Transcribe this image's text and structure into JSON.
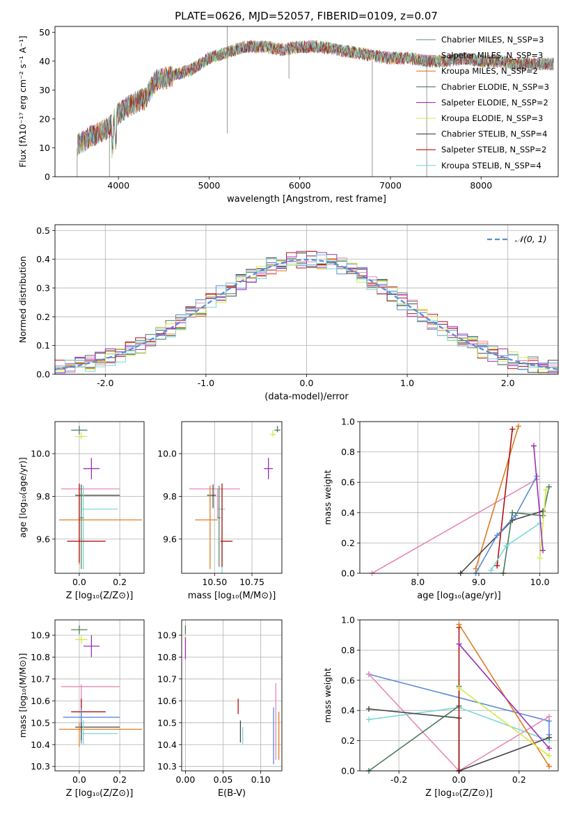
{
  "figure": {
    "title": "PLATE=0626, MJD=52057, FIBERID=0109, z=0.07"
  },
  "chart_data": [
    {
      "id": "spectrum",
      "type": "line",
      "xlabel": "wavelength [Angstrom, rest frame]",
      "ylabel": "Flux [fλ10⁻¹⁷ erg cm⁻² s⁻¹ A⁻¹]",
      "xlim": [
        3300,
        8850
      ],
      "ylim": [
        0,
        52
      ],
      "xticks": [
        4000,
        5000,
        6000,
        7000,
        8000
      ],
      "yticks": [
        0,
        10,
        20,
        30,
        40,
        50
      ],
      "grid": false,
      "legend_position": "top-right",
      "continuum_trend": {
        "x": [
          3550,
          3700,
          3900,
          4000,
          4200,
          4300,
          4400,
          4600,
          4800,
          5000,
          5200,
          5400,
          5600,
          5800,
          6000,
          6200,
          6400,
          6600,
          6800,
          7000,
          7200,
          7400,
          7600,
          7800,
          8000,
          8200,
          8400,
          8800
        ],
        "y": [
          11,
          14,
          17,
          22,
          26,
          27,
          33,
          35,
          37,
          41,
          43,
          45,
          45,
          44,
          45,
          45,
          44,
          43,
          42,
          41,
          41,
          40,
          40,
          41,
          40,
          40,
          39,
          39
        ]
      },
      "series": [
        {
          "name": "Chabrier MILES, N_SSP=3",
          "color": "#5b8c6e"
        },
        {
          "name": "Salpeter MILES, N_SSP=3",
          "color": "#e68ab8"
        },
        {
          "name": "Kroupa MILES, N_SSP=2",
          "color": "#e07b20"
        },
        {
          "name": "Chabrier ELODIE, N_SSP=3",
          "color": "#4c7a5c"
        },
        {
          "name": "Salpeter ELODIE, N_SSP=2",
          "color": "#9b30b5"
        },
        {
          "name": "Kroupa ELODIE, N_SSP=3",
          "color": "#d4e84a"
        },
        {
          "name": "Chabrier STELIB, N_SSP=4",
          "color": "#444444"
        },
        {
          "name": "Salpeter STELIB, N_SSP=2",
          "color": "#b01010"
        },
        {
          "name": "Kroupa STELIB, N_SSP=4",
          "color": "#7ad8d8"
        }
      ]
    },
    {
      "id": "residual_hist",
      "type": "line",
      "xlabel": "(data-model)/error",
      "ylabel": "Normed distribution",
      "xlim": [
        -2.5,
        2.5
      ],
      "ylim": [
        0,
        0.52
      ],
      "xticks": [
        -2,
        -1,
        0,
        1,
        2
      ],
      "yticks": [
        0.0,
        0.1,
        0.2,
        0.3,
        0.4,
        0.5
      ],
      "grid": true,
      "legend_position": "top-right",
      "reference": {
        "name": "𝒩(0, 1)",
        "color": "#5b8bd8",
        "style": "dashed",
        "mean": 0,
        "sigma": 1
      },
      "hist_colors": [
        "#5b8bd8",
        "#e07b20",
        "#4c7a5c",
        "#b01010",
        "#444444",
        "#e68ab8",
        "#d4e84a",
        "#9b30b5",
        "#7ad8d8"
      ]
    },
    {
      "id": "age_vs_Z",
      "type": "scatter",
      "xlabel": "Z [log₁₀(Z/Z⊙)]",
      "ylabel": "age  [log₁₀(age/yr)]",
      "xlim": [
        -0.12,
        0.32
      ],
      "ylim": [
        9.44,
        10.15
      ],
      "xticks": [
        0.0,
        0.2
      ],
      "yticks": [
        9.6,
        9.8,
        10.0
      ],
      "grid": true,
      "points": [
        {
          "x": 0.0,
          "y": 10.11,
          "xerr": [
            0.04,
            0.04
          ],
          "yerr": [
            0.02,
            0.02
          ],
          "color": "#4c7a5c"
        },
        {
          "x": 0.01,
          "y": 10.08,
          "xerr": [
            0.03,
            0.03
          ],
          "yerr": [
            0.01,
            0.02
          ],
          "color": "#d4e84a"
        },
        {
          "x": 0.06,
          "y": 9.93,
          "xerr": [
            0.04,
            0.04
          ],
          "yerr": [
            0.05,
            0.05
          ],
          "color": "#9b30b5"
        },
        {
          "x": 0.01,
          "y": 9.835,
          "xerr": [
            0.1,
            0.19
          ],
          "yerr": [
            0.12,
            0.0
          ],
          "color": "#e68ab8"
        },
        {
          "x": 0.01,
          "y": 9.805,
          "xerr": [
            0.03,
            0.19
          ],
          "yerr": [
            0.06,
            0.05
          ],
          "color": "#444444"
        },
        {
          "x": 0.02,
          "y": 9.74,
          "xerr": [
            0.01,
            0.17
          ],
          "yerr": [
            0.28,
            0.11
          ],
          "color": "#7ad8d8"
        },
        {
          "x": 0.0,
          "y": 9.69,
          "xerr": [
            0.1,
            0.31
          ],
          "yerr": [
            0.21,
            0.16
          ],
          "color": "#e07b20"
        },
        {
          "x": 0.0,
          "y": 9.59,
          "xerr": [
            0.06,
            0.13
          ],
          "yerr": [
            0.1,
            0.27
          ],
          "color": "#b01010"
        },
        {
          "x": 0.01,
          "y": 9.7,
          "xerr": [
            0.01,
            0.01
          ],
          "yerr": [
            0.24,
            0.15
          ],
          "color": "#5b8c6e"
        }
      ]
    },
    {
      "id": "age_vs_mass",
      "type": "scatter",
      "xlabel": "mass [log₁₀(M/M⊙)]",
      "ylabel": "",
      "xlim": [
        10.28,
        10.95
      ],
      "ylim": [
        9.44,
        10.15
      ],
      "xticks": [
        10.5,
        10.75
      ],
      "yticks": [
        9.6,
        9.8,
        10.0
      ],
      "grid": true,
      "points": [
        {
          "x": 10.92,
          "y": 10.11,
          "xerr": [
            0.02,
            0.02
          ],
          "yerr": [
            0.01,
            0.02
          ],
          "color": "#4c7a5c"
        },
        {
          "x": 10.89,
          "y": 10.09,
          "xerr": [
            0.02,
            0.02
          ],
          "yerr": [
            0.01,
            0.02
          ],
          "color": "#d4e84a"
        },
        {
          "x": 10.86,
          "y": 9.93,
          "xerr": [
            0.03,
            0.03
          ],
          "yerr": [
            0.05,
            0.05
          ],
          "color": "#9b30b5"
        },
        {
          "x": 10.52,
          "y": 9.835,
          "xerr": [
            0.19,
            0.15
          ],
          "yerr": [
            0.14,
            0.0
          ],
          "color": "#e68ab8"
        },
        {
          "x": 10.49,
          "y": 9.805,
          "xerr": [
            0.04,
            0.02
          ],
          "yerr": [
            0.06,
            0.05
          ],
          "color": "#444444"
        },
        {
          "x": 10.55,
          "y": 9.74,
          "xerr": [
            0.03,
            0.02
          ],
          "yerr": [
            0.3,
            0.1
          ],
          "color": "#7ad8d8"
        },
        {
          "x": 10.47,
          "y": 9.69,
          "xerr": [
            0.1,
            0.05
          ],
          "yerr": [
            0.23,
            0.16
          ],
          "color": "#e07b20"
        },
        {
          "x": 10.55,
          "y": 9.59,
          "xerr": [
            0.01,
            0.07
          ],
          "yerr": [
            0.12,
            0.27
          ],
          "color": "#b01010"
        },
        {
          "x": 10.53,
          "y": 9.7,
          "xerr": [
            0.01,
            0.01
          ],
          "yerr": [
            0.23,
            0.15
          ],
          "color": "#5b8c6e"
        }
      ]
    },
    {
      "id": "weight_vs_age",
      "type": "line",
      "xlabel": "age  [log₁₀(age/yr)]",
      "ylabel": "mass weight",
      "xlim": [
        7.05,
        10.3
      ],
      "ylim": [
        0.0,
        1.0
      ],
      "xticks": [
        8,
        9,
        10
      ],
      "yticks": [
        0.0,
        0.2,
        0.4,
        0.6,
        0.8,
        1.0
      ],
      "grid": true,
      "series": [
        {
          "color": "#e68ab8",
          "x": [
            7.25,
            9.95
          ],
          "y": [
            0.0,
            0.62
          ]
        },
        {
          "color": "#e07b20",
          "x": [
            8.95,
            9.65
          ],
          "y": [
            0.03,
            0.97
          ]
        },
        {
          "color": "#b01010",
          "x": [
            9.3,
            9.55
          ],
          "y": [
            0.05,
            0.95
          ]
        },
        {
          "color": "#444444",
          "x": [
            8.7,
            9.55,
            10.05
          ],
          "y": [
            0.0,
            0.35,
            0.41
          ]
        },
        {
          "color": "#5b8bd8",
          "x": [
            8.95,
            9.3,
            9.6,
            9.95
          ],
          "y": [
            0.0,
            0.25,
            0.38,
            0.64
          ]
        },
        {
          "color": "#4c7a5c",
          "x": [
            9.4,
            9.55,
            10.05,
            10.15
          ],
          "y": [
            0.0,
            0.4,
            0.38,
            0.57
          ]
        },
        {
          "color": "#7ad8d8",
          "x": [
            9.2,
            9.45,
            10.0
          ],
          "y": [
            0.02,
            0.18,
            0.33
          ]
        },
        {
          "color": "#d4e84a",
          "x": [
            10.0,
            10.1
          ],
          "y": [
            0.1,
            0.55
          ]
        },
        {
          "color": "#9b30b5",
          "x": [
            9.9,
            10.05
          ],
          "y": [
            0.84,
            0.15
          ]
        }
      ]
    },
    {
      "id": "mass_vs_Z",
      "type": "scatter",
      "xlabel": "Z [log₁₀(Z/Z⊙)]",
      "ylabel": "mass [log₁₀(M/M⊙)]",
      "xlim": [
        -0.12,
        0.32
      ],
      "ylim": [
        10.28,
        10.97
      ],
      "xticks": [
        0.0,
        0.2
      ],
      "yticks": [
        10.3,
        10.4,
        10.5,
        10.6,
        10.7,
        10.8,
        10.9
      ],
      "grid": true,
      "points": [
        {
          "x": 0.0,
          "y": 10.925,
          "xerr": [
            0.04,
            0.04
          ],
          "yerr": [
            0.02,
            0.02
          ],
          "color": "#4c7a5c"
        },
        {
          "x": 0.01,
          "y": 10.88,
          "xerr": [
            0.03,
            0.03
          ],
          "yerr": [
            0.02,
            0.02
          ],
          "color": "#d4e84a"
        },
        {
          "x": 0.06,
          "y": 10.85,
          "xerr": [
            0.04,
            0.04
          ],
          "yerr": [
            0.05,
            0.05
          ],
          "color": "#9b30b5"
        },
        {
          "x": 0.01,
          "y": 10.665,
          "xerr": [
            0.1,
            0.19
          ],
          "yerr": [
            0.18,
            0.01
          ],
          "color": "#e68ab8"
        },
        {
          "x": 0.01,
          "y": 10.55,
          "xerr": [
            0.05,
            0.12
          ],
          "yerr": [
            0.1,
            0.06
          ],
          "color": "#b01010"
        },
        {
          "x": 0.01,
          "y": 10.525,
          "xerr": [
            0.09,
            0.19
          ],
          "yerr": [
            0.12,
            0.04
          ],
          "color": "#5b8bd8"
        },
        {
          "x": 0.01,
          "y": 10.48,
          "xerr": [
            0.03,
            0.19
          ],
          "yerr": [
            0.06,
            0.02
          ],
          "color": "#444444"
        },
        {
          "x": 0.0,
          "y": 10.47,
          "xerr": [
            0.1,
            0.31
          ],
          "yerr": [
            0.08,
            0.03
          ],
          "color": "#e07b20"
        },
        {
          "x": 0.02,
          "y": 10.45,
          "xerr": [
            0.01,
            0.17
          ],
          "yerr": [
            0.05,
            0.06
          ],
          "color": "#7ad8d8"
        }
      ]
    },
    {
      "id": "mass_vs_EBV",
      "type": "scatter",
      "xlabel": "E(B-V)",
      "ylabel": "",
      "xlim": [
        -0.005,
        0.128
      ],
      "ylim": [
        10.28,
        10.97
      ],
      "xticks": [
        0.0,
        0.05,
        0.1
      ],
      "yticks": [
        10.3,
        10.4,
        10.5,
        10.6,
        10.7,
        10.8,
        10.9
      ],
      "grid": true,
      "points": [
        {
          "x": 0.0,
          "y": 10.925,
          "xerr": [
            0,
            0
          ],
          "yerr": [
            0.02,
            0.02
          ],
          "color": "#4c7a5c"
        },
        {
          "x": 0.0,
          "y": 10.88,
          "xerr": [
            0,
            0
          ],
          "yerr": [
            0.02,
            0.02
          ],
          "color": "#d4e84a"
        },
        {
          "x": 0.0,
          "y": 10.84,
          "xerr": [
            0,
            0
          ],
          "yerr": [
            0.05,
            0.05
          ],
          "color": "#9b30b5"
        },
        {
          "x": 0.07,
          "y": 10.58,
          "xerr": [
            0,
            0
          ],
          "yerr": [
            0.04,
            0.03
          ],
          "color": "#b01010"
        },
        {
          "x": 0.073,
          "y": 10.46,
          "xerr": [
            0,
            0
          ],
          "yerr": [
            0.05,
            0.05
          ],
          "color": "#444444"
        },
        {
          "x": 0.076,
          "y": 10.44,
          "xerr": [
            0,
            0
          ],
          "yerr": [
            0.04,
            0.04
          ],
          "color": "#7ad8d8"
        },
        {
          "x": 0.117,
          "y": 10.43,
          "xerr": [
            0,
            0
          ],
          "yerr": [
            0.12,
            0.14
          ],
          "color": "#5b8bd8"
        },
        {
          "x": 0.12,
          "y": 10.5,
          "xerr": [
            0,
            0
          ],
          "yerr": [
            0.17,
            0.18
          ],
          "color": "#e68ab8"
        },
        {
          "x": 0.124,
          "y": 10.44,
          "xerr": [
            0,
            0
          ],
          "yerr": [
            0.11,
            0.11
          ],
          "color": "#e07b20"
        }
      ]
    },
    {
      "id": "weight_vs_Z",
      "type": "line",
      "xlabel": "Z [log₁₀(Z/Z⊙)]",
      "ylabel": "mass weight",
      "xlim": [
        -0.33,
        0.33
      ],
      "ylim": [
        0.0,
        1.0
      ],
      "xticks": [
        -0.2,
        0.0,
        0.2
      ],
      "yticks": [
        0.0,
        0.2,
        0.4,
        0.6,
        0.8,
        1.0
      ],
      "grid": true,
      "series": [
        {
          "color": "#5b8bd8",
          "x": [
            -0.3,
            0.3,
            0.3
          ],
          "y": [
            0.64,
            0.33,
            0.24
          ]
        },
        {
          "color": "#e68ab8",
          "x": [
            -0.3,
            0.0,
            0.3
          ],
          "y": [
            0.64,
            0.0,
            0.36
          ]
        },
        {
          "color": "#7ad8d8",
          "x": [
            -0.3,
            0.0,
            0.3
          ],
          "y": [
            0.34,
            0.42,
            0.2
          ]
        },
        {
          "color": "#444444",
          "x": [
            -0.3,
            0.0,
            0.0,
            0.3
          ],
          "y": [
            0.41,
            0.35,
            0.0,
            0.22
          ]
        },
        {
          "color": "#4c7a5c",
          "x": [
            -0.3,
            0.0,
            0.0
          ],
          "y": [
            0.0,
            0.43,
            0.56
          ]
        },
        {
          "color": "#b01010",
          "x": [
            0.0,
            0.0
          ],
          "y": [
            0.0,
            0.95
          ]
        },
        {
          "color": "#e07b20",
          "x": [
            0.0,
            0.3
          ],
          "y": [
            0.97,
            0.03
          ]
        },
        {
          "color": "#9b30b5",
          "x": [
            0.0,
            0.3
          ],
          "y": [
            0.84,
            0.15
          ]
        },
        {
          "color": "#d4e84a",
          "x": [
            0.0,
            0.3
          ],
          "y": [
            0.55,
            0.1
          ]
        }
      ]
    }
  ]
}
